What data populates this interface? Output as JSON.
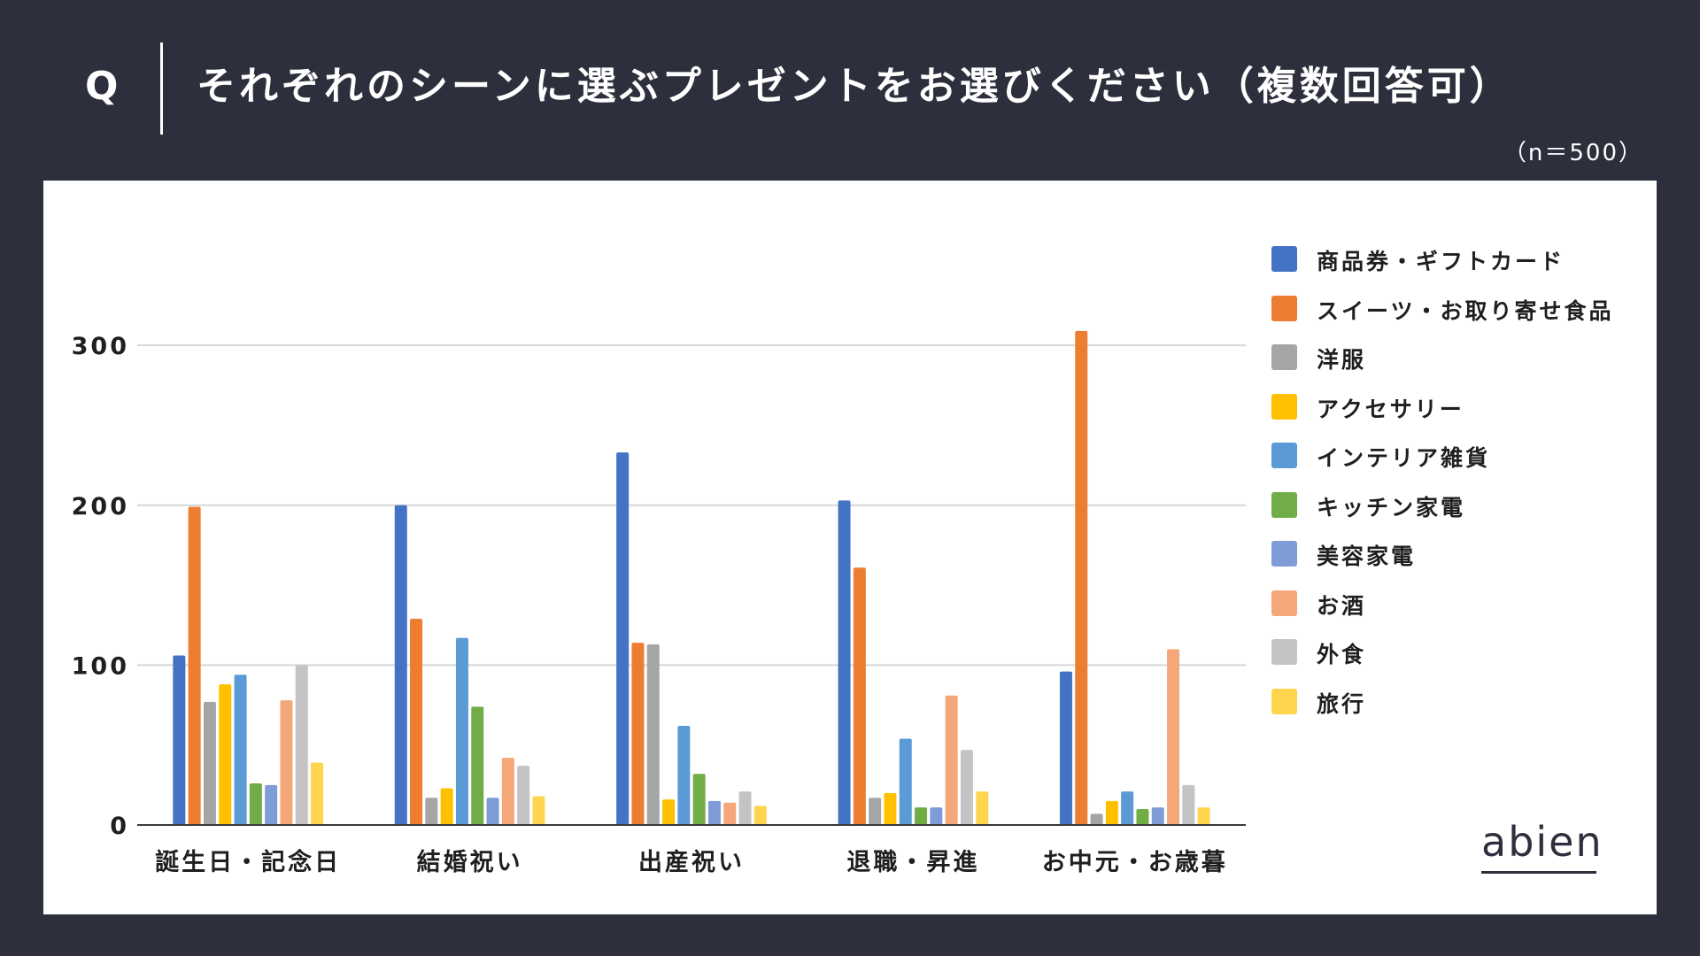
{
  "header": {
    "q_mark": "Q",
    "question": "それぞれのシーンに選ぶプレゼントをお選びください（複数回答可）",
    "sample_size": "（n＝500）"
  },
  "brand": {
    "logo_text": "abien",
    "background_color": "#2d2f3d"
  },
  "chart_data": {
    "type": "bar",
    "title": "それぞれのシーンに選ぶプレゼントをお選びください（複数回答可）",
    "xlabel": "",
    "ylabel": "",
    "ylim": [
      0,
      320
    ],
    "yticks": [
      0,
      100,
      200,
      300
    ],
    "grid": true,
    "legend_position": "right",
    "categories": [
      "誕生日・記念日",
      "結婚祝い",
      "出産祝い",
      "退職・昇進",
      "お中元・お歳暮"
    ],
    "series": [
      {
        "name": "商品券・ギフトカード",
        "color": "#4472c4",
        "values": [
          106,
          200,
          233,
          203,
          96
        ]
      },
      {
        "name": "スイーツ・お取り寄せ食品",
        "color": "#ed7d31",
        "values": [
          199,
          129,
          114,
          161,
          309
        ]
      },
      {
        "name": "洋服",
        "color": "#a5a5a5",
        "values": [
          77,
          17,
          113,
          17,
          7
        ]
      },
      {
        "name": "アクセサリー",
        "color": "#ffc000",
        "values": [
          88,
          23,
          16,
          20,
          15
        ]
      },
      {
        "name": "インテリア雑貨",
        "color": "#5b9bd5",
        "values": [
          94,
          117,
          62,
          54,
          21
        ]
      },
      {
        "name": "キッチン家電",
        "color": "#70ad47",
        "values": [
          26,
          74,
          32,
          11,
          10
        ]
      },
      {
        "name": "美容家電",
        "color": "#7f9bd8",
        "values": [
          25,
          17,
          15,
          11,
          11
        ]
      },
      {
        "name": "お酒",
        "color": "#f4a779",
        "values": [
          78,
          42,
          14,
          81,
          110
        ]
      },
      {
        "name": "外食",
        "color": "#c4c4c4",
        "values": [
          100,
          37,
          21,
          47,
          25
        ]
      },
      {
        "name": "旅行",
        "color": "#ffd54f",
        "values": [
          39,
          18,
          12,
          21,
          11
        ]
      }
    ]
  }
}
